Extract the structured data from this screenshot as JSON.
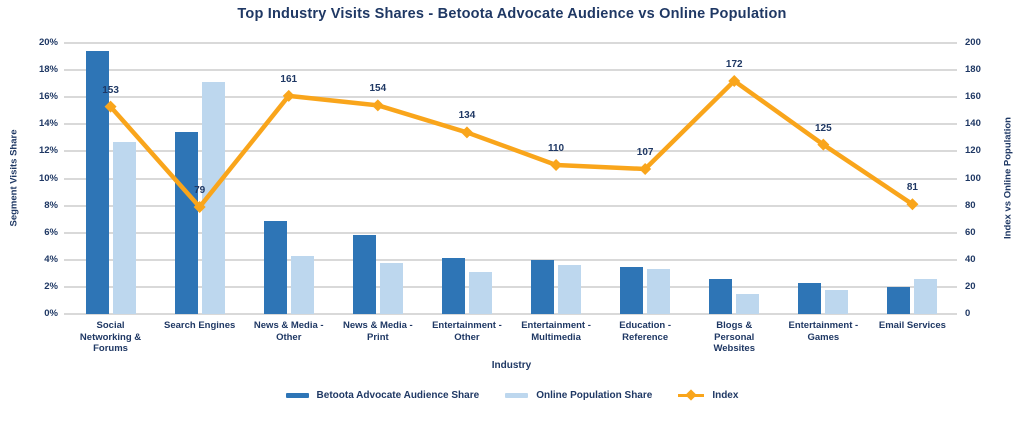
{
  "chart_data": {
    "type": "bar+line combo",
    "title": "Top Industry Visits Shares - Betoota Advocate Audience vs Online Population",
    "xlabel": "Industry",
    "ylabel_left": "Segment Visits Share",
    "ylabel_right": "Index vs Online Population",
    "categories": [
      "Social Networking & Forums",
      "Search Engines",
      "News & Media - Other",
      "News & Media - Print",
      "Entertainment - Other",
      "Entertainment - Multimedia",
      "Education - Reference",
      "Blogs & Personal Websites",
      "Entertainment - Games",
      "Email Services"
    ],
    "series": [
      {
        "name": "Betoota Advocate Audience Share",
        "type": "bar",
        "axis": "left",
        "unit": "%",
        "color": "#2E75B6",
        "values": [
          19.4,
          13.4,
          6.9,
          5.8,
          4.1,
          4.0,
          3.5,
          2.6,
          2.3,
          2.0
        ]
      },
      {
        "name": "Online Population Share",
        "type": "bar",
        "axis": "left",
        "unit": "%",
        "color": "#BDD7EE",
        "values": [
          12.7,
          17.1,
          4.3,
          3.8,
          3.1,
          3.6,
          3.3,
          1.5,
          1.8,
          2.6
        ]
      },
      {
        "name": "Index",
        "type": "line",
        "axis": "right",
        "color": "#F9A51B",
        "values": [
          153,
          79,
          161,
          154,
          134,
          110,
          107,
          172,
          125,
          81
        ],
        "point_labels": [
          "153",
          "79",
          "161",
          "154",
          "134",
          "110",
          "107",
          "172",
          "125",
          "81"
        ]
      }
    ],
    "ylim_left": [
      0,
      20
    ],
    "yticks_left": [
      "0%",
      "2%",
      "4%",
      "6%",
      "8%",
      "10%",
      "12%",
      "14%",
      "16%",
      "18%",
      "20%"
    ],
    "ylim_right": [
      0,
      200
    ],
    "yticks_right": [
      "0",
      "20",
      "40",
      "60",
      "80",
      "100",
      "120",
      "140",
      "160",
      "180",
      "200"
    ],
    "grid": "horizontal",
    "legend_position": "bottom",
    "text_color": "#1F3864",
    "gridline_color": "#D9D9D9",
    "background": "#FFFFFF"
  }
}
